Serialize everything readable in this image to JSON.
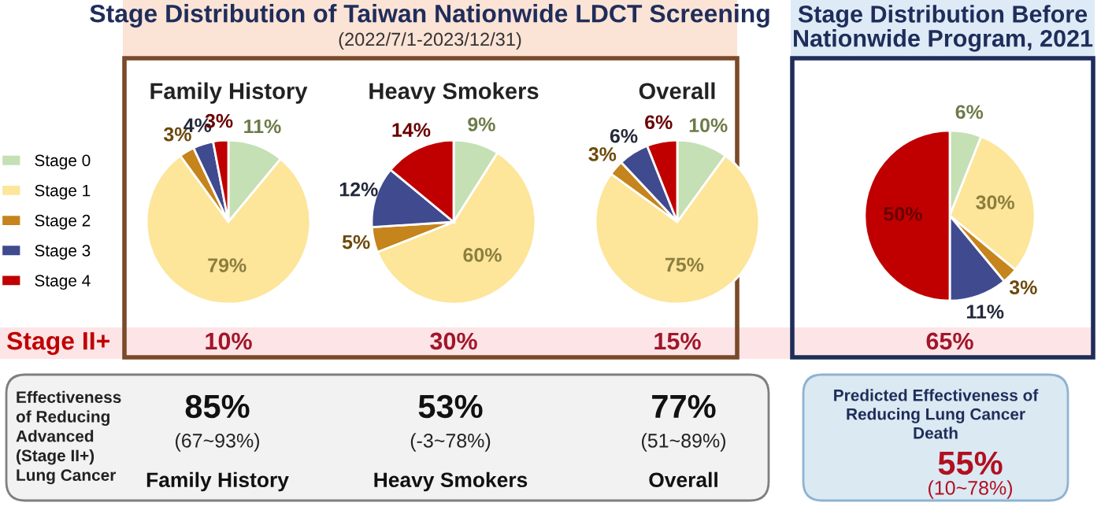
{
  "chart_data": [
    {
      "type": "other",
      "title": "Stage Distribution of Taiwan Nationwide LDCT Screening",
      "subtitle": "(2022/7/1-2023/12/31)"
    },
    {
      "type": "other",
      "title": "Stage Distribution Before\nNationwide Program, 2021"
    },
    {
      "type": "pie",
      "title": "Family History",
      "categories": [
        "Stage 0",
        "Stage 1",
        "Stage 2",
        "Stage 3",
        "Stage 4"
      ],
      "values": [
        11,
        79,
        3,
        4,
        3
      ],
      "value_labels": [
        "11%",
        "79%",
        "3%",
        "4%",
        "3%"
      ],
      "colors": [
        "#c5e0b4",
        "#fde59a",
        "#c5841c",
        "#3f4a8f",
        "#c00000"
      ],
      "legend": "left",
      "annotations": [
        "10%"
      ]
    },
    {
      "type": "pie",
      "title": "Heavy Smokers",
      "categories": [
        null,
        null,
        null,
        null,
        null
      ],
      "values": [
        9,
        60,
        5,
        12,
        14
      ],
      "value_labels": [
        "9%",
        "60%",
        "5%",
        "12%",
        "14%"
      ],
      "colors": [
        "#c5e0b4",
        "#fde59a",
        "#c5841c",
        "#3f4a8f",
        "#c00000"
      ],
      "annotations": [
        "30%"
      ]
    },
    {
      "type": "pie",
      "title": "Overall",
      "categories": [
        null,
        null,
        null,
        null,
        null
      ],
      "values": [
        10,
        75,
        3,
        6,
        6
      ],
      "value_labels": [
        "10%",
        "75%",
        "3%",
        "6%",
        "6%"
      ],
      "colors": [
        "#c5e0b4",
        "#fde59a",
        "#c5841c",
        "#3f4a8f",
        "#c00000"
      ],
      "annotations": [
        "15%"
      ]
    },
    {
      "type": "pie",
      "categories": [
        null,
        null,
        null,
        null,
        null
      ],
      "values": [
        6,
        30,
        3,
        11,
        50
      ],
      "value_labels": [
        "6%",
        "30%",
        "3%",
        "11%",
        "50%"
      ],
      "colors": [
        "#c5e0b4",
        "#fde59a",
        "#c5841c",
        "#3f4a8f",
        "#c00000"
      ],
      "annotations": [
        "65%"
      ]
    },
    {
      "type": "other",
      "title": "Stage II+"
    },
    {
      "type": "other",
      "title": "Effectiveness\nof Reducing\nAdvanced\n(Stage II+)\nLung Cancer",
      "annotations": [
        "85%",
        "(67~93%)",
        "Family History",
        "53%",
        "(-3~78%)",
        "Heavy Smokers",
        "77%",
        "(51~89%)",
        "Overall"
      ]
    },
    {
      "type": "other",
      "title": "Predicted Effectiveness of\nReducing Lung Cancer\nDeath",
      "annotations": [
        "55%",
        "(10~78%)"
      ]
    }
  ]
}
